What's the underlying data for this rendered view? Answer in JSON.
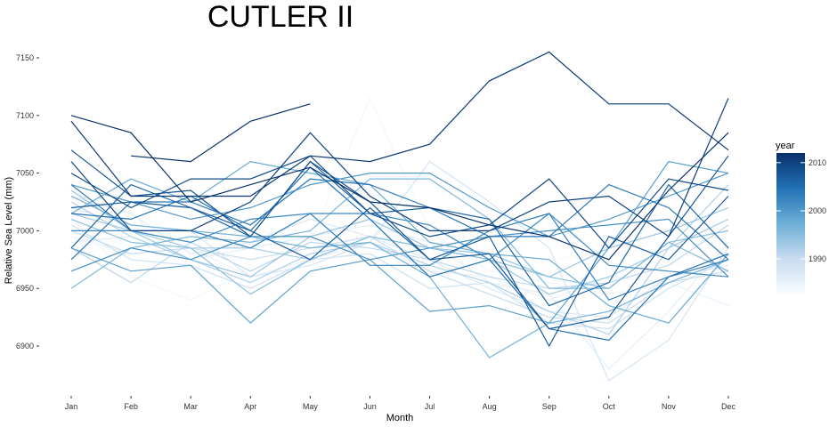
{
  "chart_data": {
    "type": "line",
    "title": "CUTLER II",
    "xlabel": "Month",
    "ylabel": "Relative Sea Level (mm)",
    "categories": [
      "Jan",
      "Feb",
      "Mar",
      "Apr",
      "May",
      "Jun",
      "Jul",
      "Aug",
      "Sep",
      "Oct",
      "Nov",
      "Dec"
    ],
    "y_ticks": [
      6900,
      6950,
      7000,
      7050,
      7100,
      7150
    ],
    "ylim": [
      6855,
      7160
    ],
    "grid": false,
    "legend": {
      "title": "year",
      "position": "right",
      "type": "colorbar",
      "ticks": [
        1990,
        2000,
        2010
      ],
      "range": [
        1983,
        2012
      ],
      "colors": [
        "#f7fbff",
        "#c6dbef",
        "#6baed6",
        "#2171b5",
        "#08306b"
      ]
    },
    "series": [
      {
        "year": 1983,
        "values": [
          7005,
          6985,
          6990,
          6970,
          6980,
          6985,
          6975,
          6960,
          6975,
          6980,
          6970,
          6975
        ]
      },
      {
        "year": 1984,
        "values": [
          7010,
          6960,
          6940,
          6965,
          6990,
          7115,
          7000,
          6965,
          6955,
          6945,
          6955,
          6965
        ]
      },
      {
        "year": 1985,
        "values": [
          6995,
          6980,
          6985,
          6960,
          6975,
          6990,
          6965,
          6960,
          6940,
          6960,
          6955,
          6935
        ]
      },
      {
        "year": 1986,
        "values": [
          6990,
          6995,
          6975,
          6985,
          6995,
          7005,
          6990,
          6955,
          6945,
          6880,
          6930,
          6990
        ]
      },
      {
        "year": 1987,
        "values": [
          7030,
          7015,
          6980,
          6990,
          7010,
          6995,
          6975,
          6950,
          6930,
          6925,
          6960,
          6970
        ]
      },
      {
        "year": 1988,
        "values": [
          7020,
          7005,
          7000,
          6960,
          6970,
          6990,
          7060,
          7025,
          6985,
          6870,
          6905,
          6985
        ]
      },
      {
        "year": 1989,
        "values": [
          7005,
          6975,
          6970,
          6950,
          6975,
          6980,
          6950,
          6955,
          6920,
          6915,
          6950,
          6975
        ]
      },
      {
        "year": 1990,
        "values": [
          7000,
          6980,
          6985,
          6975,
          6985,
          6995,
          6965,
          6945,
          6925,
          6920,
          6955,
          6965
        ]
      },
      {
        "year": 1991,
        "values": [
          6985,
          6955,
          6990,
          6965,
          6990,
          6985,
          6975,
          6960,
          6950,
          6955,
          6970,
          7005
        ]
      },
      {
        "year": 1992,
        "values": [
          7025,
          6995,
          6975,
          6955,
          6980,
          6990,
          6970,
          6955,
          6930,
          6910,
          6985,
          7040
        ]
      },
      {
        "year": 1993,
        "values": [
          7015,
          7000,
          6985,
          6985,
          6975,
          6995,
          6985,
          6975,
          6945,
          6960,
          6985,
          7010
        ]
      },
      {
        "year": 1994,
        "values": [
          7035,
          7000,
          6975,
          6960,
          6995,
          7010,
          6985,
          6980,
          6960,
          6985,
          7000,
          7020
        ]
      },
      {
        "year": 1995,
        "values": [
          7010,
          6990,
          6985,
          6945,
          6975,
          6995,
          6985,
          6975,
          6960,
          6950,
          6990,
          7000
        ]
      },
      {
        "year": 1996,
        "values": [
          6950,
          6985,
          6995,
          6990,
          7000,
          7045,
          7045,
          7010,
          6950,
          6950,
          6990,
          6965
        ]
      },
      {
        "year": 1997,
        "values": [
          7030,
          7005,
          7000,
          6995,
          6985,
          6990,
          6960,
          6890,
          6920,
          6930,
          6955,
          6975
        ]
      },
      {
        "year": 1998,
        "values": [
          7015,
          7045,
          7025,
          7060,
          7050,
          7040,
          6990,
          6980,
          6975,
          6935,
          6920,
          6980
        ]
      },
      {
        "year": 1999,
        "values": [
          6985,
          6965,
          6970,
          6920,
          6965,
          6975,
          6930,
          6935,
          6920,
          6985,
          7060,
          7050
        ]
      },
      {
        "year": 2000,
        "values": [
          7040,
          7025,
          7010,
          7020,
          7040,
          7050,
          7050,
          7020,
          6995,
          7010,
          7030,
          7050
        ]
      },
      {
        "year": 2001,
        "values": [
          6965,
          6985,
          6975,
          6995,
          6995,
          6975,
          6985,
          6995,
          7000,
          7005,
          7010,
          6960
        ]
      },
      {
        "year": 2002,
        "values": [
          7000,
          7000,
          6990,
          7010,
          7015,
          7015,
          7005,
          6975,
          7015,
          6970,
          6965,
          6960
        ]
      },
      {
        "year": 2003,
        "values": [
          7040,
          7000,
          7000,
          6985,
          7015,
          6970,
          6970,
          7000,
          7015,
          6940,
          6960,
          6975
        ]
      },
      {
        "year": 2004,
        "values": [
          6975,
          7025,
          7025,
          7005,
          7045,
          7040,
          7020,
          6995,
          6995,
          7040,
          7020,
          6975
        ]
      },
      {
        "year": 2005,
        "values": [
          7015,
          7010,
          7030,
          7000,
          7055,
          7010,
          6960,
          6975,
          6915,
          6905,
          6960,
          6980
        ]
      },
      {
        "year": 2006,
        "values": [
          6985,
          7040,
          7020,
          6995,
          7060,
          7015,
          7020,
          7010,
          6935,
          6955,
          7040,
          6985
        ]
      },
      {
        "year": 2007,
        "values": [
          7020,
          7025,
          7020,
          7000,
          6975,
          7020,
          6975,
          6995,
          6900,
          6995,
          6975,
          7030
        ]
      },
      {
        "year": 2008,
        "values": [
          7070,
          7030,
          7035,
          6995,
          7060,
          7025,
          6975,
          6980,
          6915,
          6925,
          6995,
          7065
        ]
      },
      {
        "year": 2009,
        "values": [
          7050,
          7020,
          7045,
          7045,
          7065,
          7015,
          6995,
          7005,
          7045,
          6985,
          7045,
          7035
        ]
      },
      {
        "year": 2010,
        "values": [
          7060,
          7000,
          7000,
          7025,
          7085,
          7030,
          7000,
          7000,
          7025,
          7030,
          6995,
          7115
        ]
      },
      {
        "year": 2011,
        "values": [
          7095,
          7030,
          7030,
          7030,
          7065,
          7060,
          7075,
          7130,
          7155,
          7110,
          7110,
          7070
        ]
      },
      {
        "year": 2012,
        "values": [
          7100,
          7085,
          7025,
          7040,
          7055,
          7025,
          7020,
          7005,
          6995,
          6975,
          7035,
          7085
        ]
      },
      {
        "year": 2012,
        "values": [
          null,
          7065,
          7060,
          7095,
          7110,
          null,
          null,
          null,
          null,
          null,
          null,
          null
        ]
      }
    ]
  }
}
